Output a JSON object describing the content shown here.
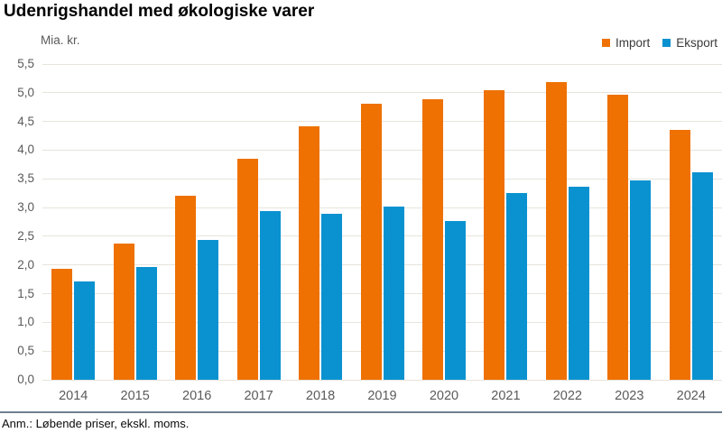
{
  "page": {
    "footnote": "Anm.: Løbende priser, ekskl. moms."
  },
  "chart_data": {
    "type": "bar",
    "title": "Udenrigshandel med økologiske varer",
    "unit_label": "Mia. kr.",
    "categories": [
      "2014",
      "2015",
      "2016",
      "2017",
      "2018",
      "2019",
      "2020",
      "2021",
      "2022",
      "2023",
      "2024"
    ],
    "series": [
      {
        "name": "Import",
        "color": "#ee7101",
        "values": [
          1.93,
          2.38,
          3.2,
          3.85,
          4.42,
          4.81,
          4.88,
          5.04,
          5.19,
          4.97,
          4.35
        ]
      },
      {
        "name": "Eksport",
        "color": "#0a92d0",
        "values": [
          1.71,
          1.97,
          2.44,
          2.94,
          2.89,
          3.01,
          2.77,
          3.25,
          3.36,
          3.48,
          3.62
        ]
      }
    ],
    "ylim": [
      0,
      5.5
    ],
    "ytick_step": 0.5,
    "ytick_labels": [
      "0,0",
      "0,5",
      "1,0",
      "1,5",
      "2,0",
      "2,5",
      "3,0",
      "3,5",
      "4,0",
      "4,5",
      "5,0",
      "5,5"
    ],
    "grid": true,
    "gridline_color": "#e7e4dc",
    "legend_position": "top-right"
  }
}
